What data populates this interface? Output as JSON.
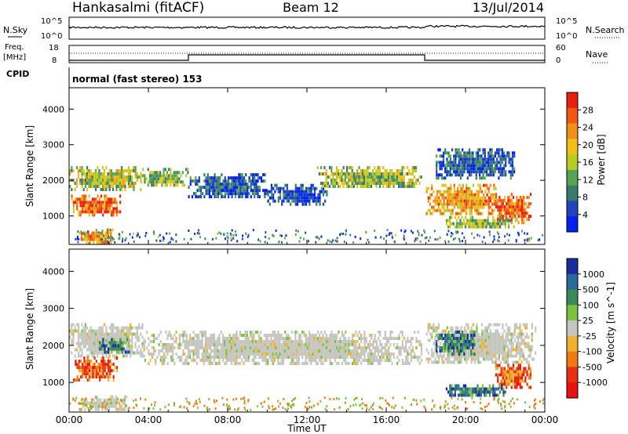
{
  "header": {
    "station": "Hankasalmi (fitACF)",
    "beam": "Beam 12",
    "date": "13/Jul/2014"
  },
  "aux": {
    "nsky_label": "N.Sky",
    "nsearch_label": "N.Search",
    "freq_label_1": "Freq.",
    "freq_label_2": "[MHz]",
    "nave_label": "Nave",
    "cpid_label": "CPID",
    "cpid_value": "normal (fast stereo) 153",
    "noise_ticks_left": [
      "10^5",
      "10^0"
    ],
    "noise_ticks_right": [
      "10^5",
      "10^0"
    ],
    "freq_ticks": [
      "18",
      "8"
    ],
    "nave_ticks": [
      "60",
      "0"
    ]
  },
  "chart_data": [
    {
      "type": "heatmap",
      "panel": "power",
      "ylabel": "Slant Range [km]",
      "yticks": [
        1000,
        2000,
        3000,
        4000
      ],
      "ylim": [
        200,
        4600
      ],
      "colorbar": {
        "label": "Power [dB]",
        "ticks": [
          4,
          8,
          12,
          16,
          20,
          24,
          28
        ],
        "range": [
          0,
          32
        ],
        "colors": [
          "#0022ee",
          "#2244bb",
          "#3a7a6a",
          "#55a555",
          "#b8cc22",
          "#f0c018",
          "#f09018",
          "#f05a10",
          "#e82010"
        ]
      },
      "regions": [
        {
          "t0": 0.0,
          "t1": 3.6,
          "r0": 1700,
          "r1": 2400,
          "level": 16
        },
        {
          "t0": 0.1,
          "t1": 2.6,
          "r0": 1050,
          "r1": 1600,
          "level": 26
        },
        {
          "t0": 0.5,
          "t1": 2.2,
          "r0": 250,
          "r1": 650,
          "level": 22
        },
        {
          "t0": 3.6,
          "t1": 6.0,
          "r0": 1850,
          "r1": 2350,
          "level": 14
        },
        {
          "t0": 6.0,
          "t1": 10.0,
          "r0": 1500,
          "r1": 2200,
          "level": 6
        },
        {
          "t0": 10.0,
          "t1": 13.0,
          "r0": 1350,
          "r1": 1900,
          "level": 5
        },
        {
          "t0": 12.5,
          "t1": 17.8,
          "r0": 1800,
          "r1": 2400,
          "level": 15
        },
        {
          "t0": 18.0,
          "t1": 21.5,
          "r0": 1100,
          "r1": 1900,
          "level": 22
        },
        {
          "t0": 18.5,
          "t1": 22.5,
          "r0": 2100,
          "r1": 2900,
          "level": 6
        },
        {
          "t0": 21.5,
          "t1": 23.3,
          "r0": 850,
          "r1": 1650,
          "level": 27
        },
        {
          "t0": 19.0,
          "t1": 22.5,
          "r0": 650,
          "r1": 1000,
          "level": 14
        }
      ]
    },
    {
      "type": "heatmap",
      "panel": "velocity",
      "ylabel": "Slant Range [km]",
      "xlabel": "Time UT",
      "xticks": [
        "00:00",
        "04:00",
        "08:00",
        "12:00",
        "16:00",
        "20:00",
        "00:00"
      ],
      "yticks": [
        1000,
        2000,
        3000,
        4000
      ],
      "ylim": [
        200,
        4600
      ],
      "colorbar": {
        "label": "Velocity [m s^-1]",
        "ticks": [
          "1000",
          "500",
          "100",
          "25",
          "-25",
          "-100",
          "-500",
          "-1000"
        ],
        "colors": [
          "#1a2c9e",
          "#2a6a9a",
          "#3a8a5a",
          "#7ac240",
          "#c6c6c0",
          "#f0b030",
          "#f07a10",
          "#e83010",
          "#e81010"
        ]
      },
      "regions": [
        {
          "t0": 0.0,
          "t1": 3.8,
          "r0": 1700,
          "r1": 2600,
          "cls": "gray"
        },
        {
          "t0": 0.2,
          "t1": 2.4,
          "r0": 1100,
          "r1": 1700,
          "cls": "neg"
        },
        {
          "t0": 1.5,
          "t1": 3.0,
          "r0": 1800,
          "r1": 2200,
          "cls": "pos"
        },
        {
          "t0": 3.8,
          "t1": 17.8,
          "r0": 1500,
          "r1": 2400,
          "cls": "gray"
        },
        {
          "t0": 18.0,
          "t1": 23.5,
          "r0": 1500,
          "r1": 2600,
          "cls": "gray"
        },
        {
          "t0": 18.5,
          "t1": 20.5,
          "r0": 1800,
          "r1": 2400,
          "cls": "pos"
        },
        {
          "t0": 21.5,
          "t1": 23.3,
          "r0": 850,
          "r1": 1500,
          "cls": "neg"
        },
        {
          "t0": 19.0,
          "t1": 22.0,
          "r0": 650,
          "r1": 950,
          "cls": "pos"
        },
        {
          "t0": 0.5,
          "t1": 3.0,
          "r0": 250,
          "r1": 650,
          "cls": "gray"
        }
      ]
    }
  ]
}
